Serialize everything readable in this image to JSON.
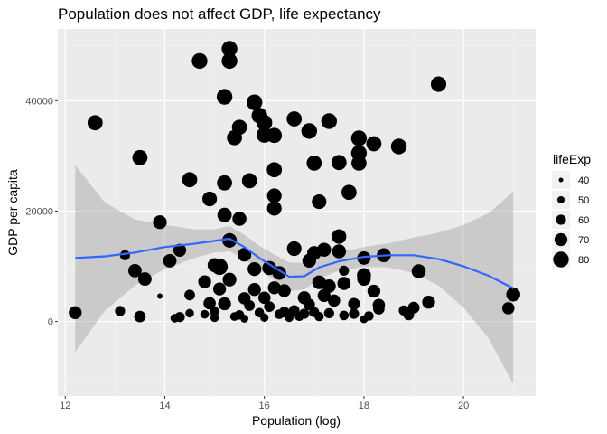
{
  "chart_data": {
    "type": "scatter",
    "title": "Population does not affect GDP, life expectancy",
    "xlabel": "Population (log)",
    "ylabel": "GDP per capita",
    "xlim": [
      11.85,
      21.45
    ],
    "ylim": [
      -13500,
      53000
    ],
    "x_ticks": [
      12,
      14,
      16,
      18,
      20
    ],
    "y_ticks": [
      0,
      20000,
      40000
    ],
    "grid": true,
    "legend": {
      "title": "lifeExp",
      "placement": "right",
      "entries": [
        40,
        50,
        60,
        70,
        80
      ]
    },
    "size_range": [
      40,
      82
    ],
    "points": [
      {
        "x": 12.2,
        "y": 1600,
        "s": 70
      },
      {
        "x": 12.6,
        "y": 36000,
        "s": 78
      },
      {
        "x": 13.1,
        "y": 1900,
        "s": 60
      },
      {
        "x": 13.2,
        "y": 12000,
        "s": 60
      },
      {
        "x": 13.4,
        "y": 9200,
        "s": 72
      },
      {
        "x": 13.5,
        "y": 29700,
        "s": 78
      },
      {
        "x": 13.5,
        "y": 900,
        "s": 65
      },
      {
        "x": 13.6,
        "y": 7700,
        "s": 72
      },
      {
        "x": 13.9,
        "y": 18000,
        "s": 73
      },
      {
        "x": 13.9,
        "y": 4600,
        "s": 43
      },
      {
        "x": 14.1,
        "y": 11000,
        "s": 72
      },
      {
        "x": 14.2,
        "y": 600,
        "s": 55
      },
      {
        "x": 14.3,
        "y": 12900,
        "s": 70
      },
      {
        "x": 14.3,
        "y": 800,
        "s": 60
      },
      {
        "x": 14.5,
        "y": 1500,
        "s": 55
      },
      {
        "x": 14.5,
        "y": 4800,
        "s": 62
      },
      {
        "x": 14.5,
        "y": 25700,
        "s": 78
      },
      {
        "x": 14.7,
        "y": 47200,
        "s": 80
      },
      {
        "x": 14.8,
        "y": 1300,
        "s": 55
      },
      {
        "x": 14.8,
        "y": 7200,
        "s": 70
      },
      {
        "x": 14.9,
        "y": 3300,
        "s": 68
      },
      {
        "x": 14.9,
        "y": 22200,
        "s": 76
      },
      {
        "x": 15.0,
        "y": 700,
        "s": 55
      },
      {
        "x": 15.0,
        "y": 1800,
        "s": 58
      },
      {
        "x": 15.0,
        "y": 10200,
        "s": 74
      },
      {
        "x": 15.1,
        "y": 5900,
        "s": 70
      },
      {
        "x": 15.1,
        "y": 9900,
        "s": 82
      },
      {
        "x": 15.2,
        "y": 19300,
        "s": 75
      },
      {
        "x": 15.2,
        "y": 40700,
        "s": 80
      },
      {
        "x": 15.2,
        "y": 25100,
        "s": 78
      },
      {
        "x": 15.2,
        "y": 3200,
        "s": 70
      },
      {
        "x": 15.3,
        "y": 14700,
        "s": 76
      },
      {
        "x": 15.3,
        "y": 7600,
        "s": 73
      },
      {
        "x": 15.3,
        "y": 49400,
        "s": 80
      },
      {
        "x": 15.3,
        "y": 47200,
        "s": 80
      },
      {
        "x": 15.4,
        "y": 900,
        "s": 55
      },
      {
        "x": 15.4,
        "y": 33300,
        "s": 78
      },
      {
        "x": 15.5,
        "y": 35200,
        "s": 78
      },
      {
        "x": 15.5,
        "y": 18600,
        "s": 74
      },
      {
        "x": 15.5,
        "y": 1200,
        "s": 58
      },
      {
        "x": 15.6,
        "y": 12100,
        "s": 73
      },
      {
        "x": 15.6,
        "y": 4200,
        "s": 68
      },
      {
        "x": 15.6,
        "y": 500,
        "s": 52
      },
      {
        "x": 15.7,
        "y": 25500,
        "s": 78
      },
      {
        "x": 15.7,
        "y": 2900,
        "s": 62
      },
      {
        "x": 15.8,
        "y": 39700,
        "s": 80
      },
      {
        "x": 15.8,
        "y": 5800,
        "s": 70
      },
      {
        "x": 15.8,
        "y": 9500,
        "s": 73
      },
      {
        "x": 15.9,
        "y": 37300,
        "s": 80
      },
      {
        "x": 15.9,
        "y": 1600,
        "s": 58
      },
      {
        "x": 16.0,
        "y": 36000,
        "s": 80
      },
      {
        "x": 16.0,
        "y": 33800,
        "s": 80
      },
      {
        "x": 16.0,
        "y": 4300,
        "s": 68
      },
      {
        "x": 16.0,
        "y": 700,
        "s": 54
      },
      {
        "x": 16.1,
        "y": 9700,
        "s": 74
      },
      {
        "x": 16.1,
        "y": 2700,
        "s": 62
      },
      {
        "x": 16.2,
        "y": 33700,
        "s": 78
      },
      {
        "x": 16.2,
        "y": 27500,
        "s": 78
      },
      {
        "x": 16.2,
        "y": 22800,
        "s": 76
      },
      {
        "x": 16.2,
        "y": 20500,
        "s": 76
      },
      {
        "x": 16.2,
        "y": 6100,
        "s": 70
      },
      {
        "x": 16.3,
        "y": 8800,
        "s": 73
      },
      {
        "x": 16.3,
        "y": 1300,
        "s": 58
      },
      {
        "x": 16.4,
        "y": 5600,
        "s": 70
      },
      {
        "x": 16.4,
        "y": 1700,
        "s": 62
      },
      {
        "x": 16.5,
        "y": 700,
        "s": 55
      },
      {
        "x": 16.6,
        "y": 36700,
        "s": 78
      },
      {
        "x": 16.6,
        "y": 13200,
        "s": 76
      },
      {
        "x": 16.6,
        "y": 2000,
        "s": 62
      },
      {
        "x": 16.7,
        "y": 900,
        "s": 56
      },
      {
        "x": 16.8,
        "y": 4300,
        "s": 70
      },
      {
        "x": 16.8,
        "y": 1400,
        "s": 60
      },
      {
        "x": 16.9,
        "y": 34500,
        "s": 80
      },
      {
        "x": 16.9,
        "y": 11000,
        "s": 73
      },
      {
        "x": 16.9,
        "y": 3100,
        "s": 65
      },
      {
        "x": 17.0,
        "y": 28700,
        "s": 78
      },
      {
        "x": 17.0,
        "y": 12400,
        "s": 74
      },
      {
        "x": 17.0,
        "y": 1700,
        "s": 60
      },
      {
        "x": 17.1,
        "y": 21700,
        "s": 76
      },
      {
        "x": 17.1,
        "y": 7100,
        "s": 73
      },
      {
        "x": 17.1,
        "y": 900,
        "s": 57
      },
      {
        "x": 17.2,
        "y": 4700,
        "s": 70
      },
      {
        "x": 17.2,
        "y": 13000,
        "s": 74
      },
      {
        "x": 17.3,
        "y": 36300,
        "s": 80
      },
      {
        "x": 17.3,
        "y": 6400,
        "s": 72
      },
      {
        "x": 17.3,
        "y": 1500,
        "s": 60
      },
      {
        "x": 17.4,
        "y": 3800,
        "s": 68
      },
      {
        "x": 17.5,
        "y": 15400,
        "s": 76
      },
      {
        "x": 17.5,
        "y": 12700,
        "s": 74
      },
      {
        "x": 17.5,
        "y": 28800,
        "s": 78
      },
      {
        "x": 17.6,
        "y": 9200,
        "s": 60
      },
      {
        "x": 17.6,
        "y": 1100,
        "s": 58
      },
      {
        "x": 17.6,
        "y": 6900,
        "s": 71
      },
      {
        "x": 17.7,
        "y": 23400,
        "s": 78
      },
      {
        "x": 17.8,
        "y": 3200,
        "s": 66
      },
      {
        "x": 17.8,
        "y": 1400,
        "s": 60
      },
      {
        "x": 17.9,
        "y": 28700,
        "s": 78
      },
      {
        "x": 17.9,
        "y": 30500,
        "s": 80
      },
      {
        "x": 17.9,
        "y": 33200,
        "s": 80
      },
      {
        "x": 18.0,
        "y": 7700,
        "s": 72
      },
      {
        "x": 18.0,
        "y": 11500,
        "s": 72
      },
      {
        "x": 18.0,
        "y": 400,
        "s": 52
      },
      {
        "x": 18.0,
        "y": 8400,
        "s": 74
      },
      {
        "x": 18.1,
        "y": 1000,
        "s": 58
      },
      {
        "x": 18.2,
        "y": 5500,
        "s": 70
      },
      {
        "x": 18.2,
        "y": 32200,
        "s": 78
      },
      {
        "x": 18.3,
        "y": 3000,
        "s": 68
      },
      {
        "x": 18.3,
        "y": 2300,
        "s": 65
      },
      {
        "x": 18.4,
        "y": 12000,
        "s": 74
      },
      {
        "x": 18.7,
        "y": 31700,
        "s": 80
      },
      {
        "x": 18.8,
        "y": 2000,
        "s": 60
      },
      {
        "x": 18.9,
        "y": 1200,
        "s": 62
      },
      {
        "x": 19.0,
        "y": 2500,
        "s": 66
      },
      {
        "x": 19.1,
        "y": 9100,
        "s": 74
      },
      {
        "x": 19.3,
        "y": 3500,
        "s": 70
      },
      {
        "x": 19.5,
        "y": 43000,
        "s": 79
      },
      {
        "x": 20.9,
        "y": 2400,
        "s": 68
      },
      {
        "x": 21.0,
        "y": 4900,
        "s": 74
      }
    ],
    "smooth": {
      "color": "#3366ff",
      "x": [
        12.2,
        12.8,
        13.4,
        14.0,
        14.6,
        15.0,
        15.3,
        15.6,
        15.9,
        16.2,
        16.5,
        16.8,
        17.1,
        17.5,
        18.0,
        18.5,
        19.0,
        19.5,
        20.0,
        20.5,
        21.0
      ],
      "y": [
        11500,
        11800,
        12500,
        13500,
        14100,
        14600,
        15000,
        13500,
        11500,
        9800,
        8100,
        8200,
        9800,
        10900,
        11700,
        12000,
        12000,
        11300,
        10000,
        8300,
        6000
      ],
      "lower": [
        -5500,
        2000,
        6500,
        9500,
        11500,
        12500,
        12700,
        11300,
        9300,
        7500,
        5500,
        5800,
        7800,
        9200,
        9900,
        9800,
        8800,
        6500,
        2500,
        -3000,
        -11300
      ],
      "upper": [
        28300,
        21500,
        18500,
        17500,
        16700,
        16700,
        17300,
        15700,
        13700,
        12100,
        10700,
        10600,
        11800,
        12600,
        13500,
        14200,
        15200,
        16100,
        17500,
        19600,
        23500
      ]
    }
  }
}
